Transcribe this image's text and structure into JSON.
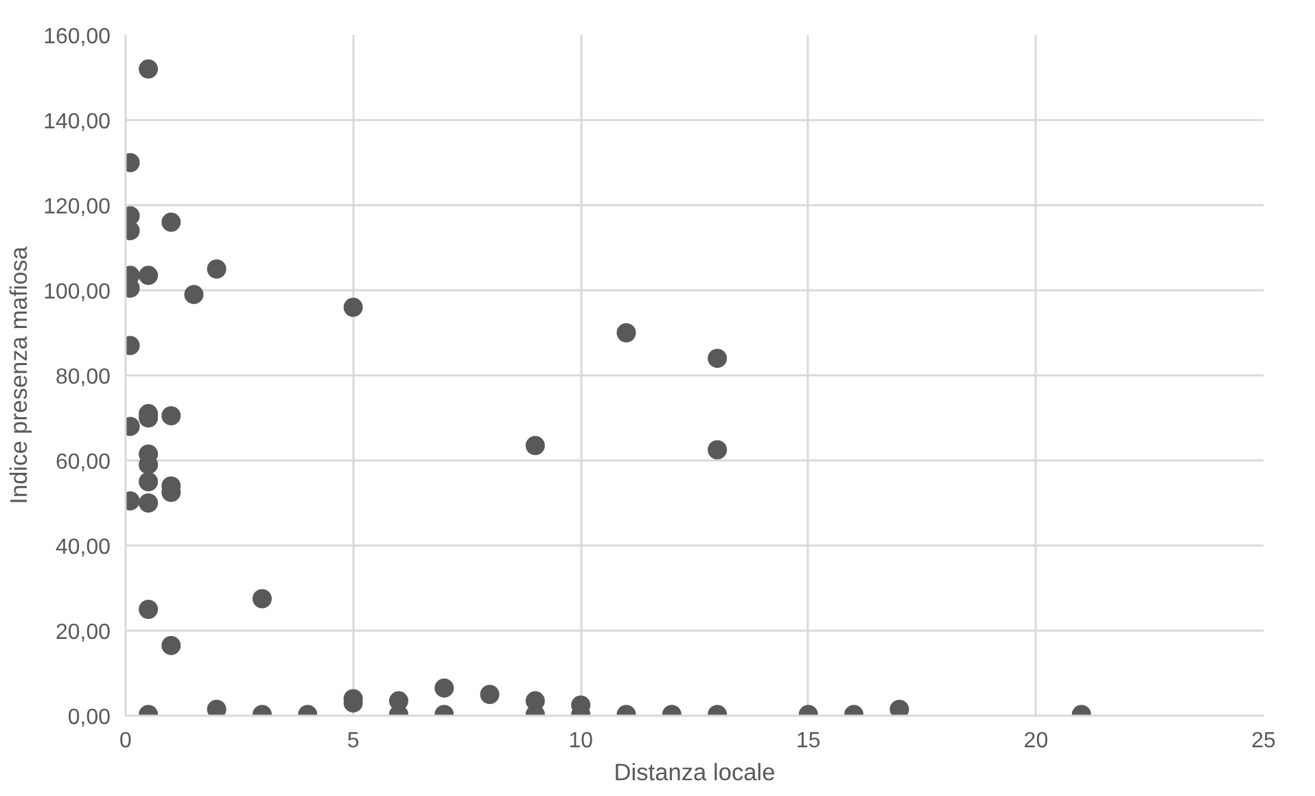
{
  "chart_data": {
    "type": "scatter",
    "xlabel": "Distanza locale",
    "ylabel": "Indice presenza mafiosa",
    "x": [
      0.5,
      0.1,
      0.1,
      0.1,
      1,
      0.1,
      0.1,
      0.5,
      2,
      1.5,
      0.1,
      0.5,
      0.5,
      1,
      0.1,
      0.5,
      0.5,
      0.5,
      1,
      1,
      0.1,
      0.5,
      0.5,
      1,
      3,
      0.5,
      2,
      3,
      5,
      9,
      11,
      13,
      13,
      4,
      5,
      5,
      6,
      6,
      7,
      7,
      8,
      9,
      9,
      10,
      10,
      11,
      12,
      13,
      15,
      16,
      17,
      21
    ],
    "values": [
      152,
      130,
      117.5,
      114,
      116,
      103.5,
      100.5,
      103.5,
      105,
      99,
      87,
      71,
      70,
      70.5,
      68,
      61.5,
      59,
      55,
      54,
      52.5,
      50.5,
      50,
      25,
      16.5,
      27.5,
      0.3,
      1.5,
      0.3,
      96,
      63.5,
      90,
      84,
      62.5,
      0.3,
      4,
      3,
      3.5,
      0.3,
      6.5,
      0.3,
      5,
      3.5,
      0.3,
      2.5,
      0.3,
      0.3,
      0.3,
      0.3,
      0.3,
      0.3,
      1.5,
      0.3
    ],
    "color": "#595959",
    "marker": "circle",
    "grid": true,
    "xlim": [
      0,
      25
    ],
    "xticks": [
      0,
      5,
      10,
      15,
      20,
      25
    ],
    "ylim": [
      0,
      160
    ],
    "yticks": [
      {
        "value": 0,
        "label": "0,00"
      },
      {
        "value": 20,
        "label": "20,00"
      },
      {
        "value": 40,
        "label": "40,00"
      },
      {
        "value": 60,
        "label": "60,00"
      },
      {
        "value": 80,
        "label": "80,00"
      },
      {
        "value": 100,
        "label": "100,00"
      },
      {
        "value": 120,
        "label": "120,00"
      },
      {
        "value": 140,
        "label": "140,00"
      },
      {
        "value": 160,
        "label": "160,00"
      }
    ]
  }
}
